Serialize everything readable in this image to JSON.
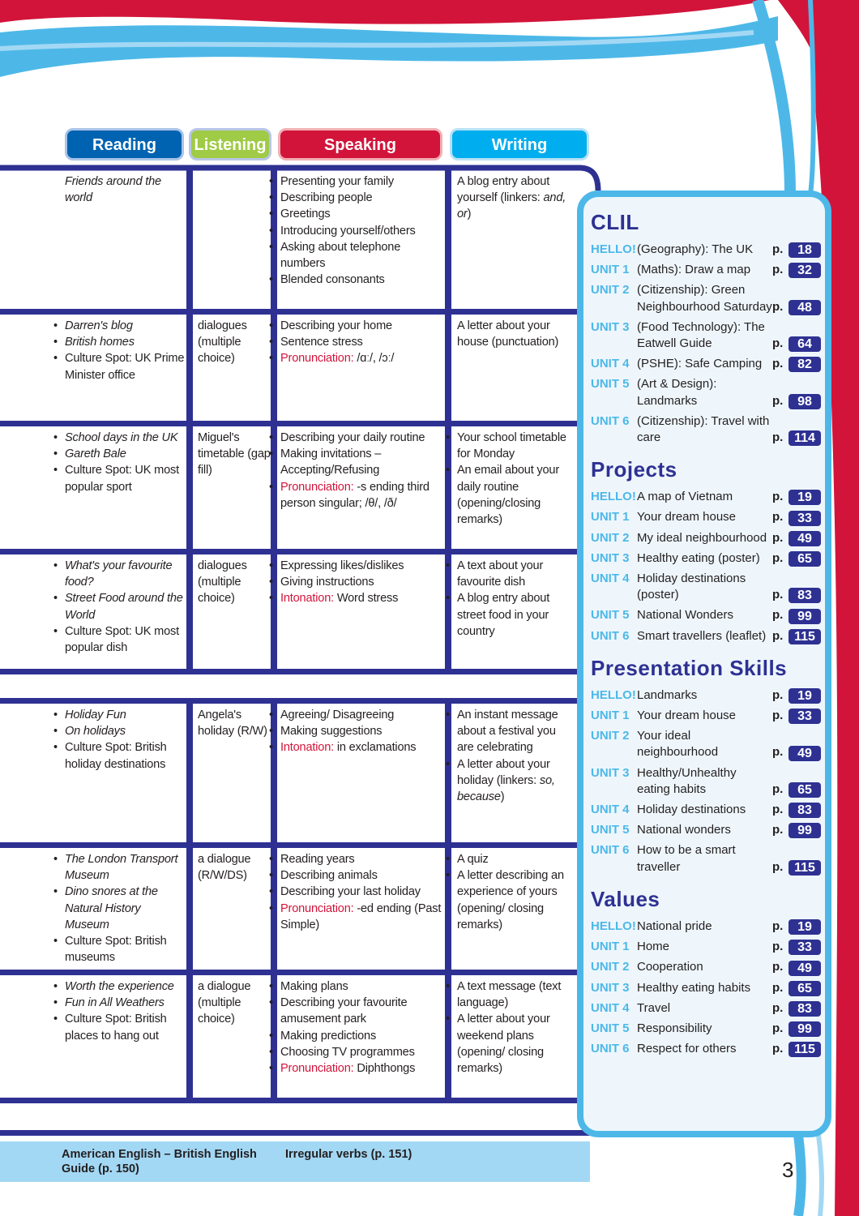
{
  "tabs": [
    {
      "label": "Reading",
      "color": "#0063b1",
      "border": "#a9c4e8"
    },
    {
      "label": "Listening",
      "color": "#9fcb46",
      "border": "#b8c6e6"
    },
    {
      "label": "Speaking",
      "color": "#d2143a",
      "border": "#f0b0b4"
    },
    {
      "label": "Writing",
      "color": "#00aeef",
      "border": "#b8e2f6"
    }
  ],
  "colors": {
    "navy": "#2e3192",
    "red": "#d2143a",
    "light_blue": "#4db8e8"
  },
  "rows": [
    {
      "reading": {
        "bul": false,
        "items": [
          [
            {
              "t": "Friends around the world",
              "s": "i"
            }
          ]
        ]
      },
      "listening": {
        "bul": false,
        "items": []
      },
      "speaking": {
        "bul": true,
        "items": [
          [
            {
              "t": "Presenting your family"
            }
          ],
          [
            {
              "t": "Describing people"
            }
          ],
          [
            {
              "t": "Greetings"
            }
          ],
          [
            {
              "t": "Introducing yourself/others"
            }
          ],
          [
            {
              "t": "Asking about telephone numbers"
            }
          ],
          [
            {
              "t": "Blended consonants"
            }
          ]
        ]
      },
      "writing": {
        "bul": false,
        "items": [
          [
            {
              "t": "A blog entry about yourself (linkers: "
            },
            {
              "t": "and, or",
              "s": "i"
            },
            {
              "t": ")"
            }
          ]
        ]
      }
    },
    {
      "reading": {
        "bul": true,
        "items": [
          [
            {
              "t": "Darren's blog",
              "s": "i"
            }
          ],
          [
            {
              "t": "British homes",
              "s": "i"
            }
          ],
          [
            {
              "t": "Culture Spot: UK Prime Minister office"
            }
          ]
        ]
      },
      "listening": {
        "bul": false,
        "items": [
          [
            {
              "t": "dialogues (multiple choice)"
            }
          ]
        ]
      },
      "speaking": {
        "bul": true,
        "items": [
          [
            {
              "t": "Describing your home"
            }
          ],
          [
            {
              "t": "Sentence stress"
            }
          ],
          [
            {
              "t": "Pronunciation:",
              "s": "r"
            },
            {
              "t": " /ɑː/, /ɔː/"
            }
          ]
        ]
      },
      "writing": {
        "bul": false,
        "items": [
          [
            {
              "t": "A letter about your house (punctuation)"
            }
          ]
        ]
      }
    },
    {
      "reading": {
        "bul": true,
        "items": [
          [
            {
              "t": "School days in the UK",
              "s": "i"
            }
          ],
          [
            {
              "t": "Gareth Bale",
              "s": "i"
            }
          ],
          [
            {
              "t": "Culture Spot: UK most popular sport"
            }
          ]
        ]
      },
      "listening": {
        "bul": false,
        "items": [
          [
            {
              "t": "Miguel's timetable (gap fill)"
            }
          ]
        ]
      },
      "speaking": {
        "bul": true,
        "items": [
          [
            {
              "t": "Describing your daily routine"
            }
          ],
          [
            {
              "t": "Making invitations – Accepting/Refusing"
            }
          ],
          [
            {
              "t": "Pronunciation:",
              "s": "r"
            },
            {
              "t": " -s ending third person singular; /θ/, /ð/"
            }
          ]
        ]
      },
      "writing": {
        "bul": true,
        "items": [
          [
            {
              "t": "Your school timetable for Monday"
            }
          ],
          [
            {
              "t": "An email about your daily routine (opening/closing remarks)"
            }
          ]
        ]
      }
    },
    {
      "reading": {
        "bul": true,
        "items": [
          [
            {
              "t": "What's your favourite food?",
              "s": "i"
            }
          ],
          [
            {
              "t": "Street Food around the World",
              "s": "i"
            }
          ],
          [
            {
              "t": "Culture Spot: UK most popular dish"
            }
          ]
        ]
      },
      "listening": {
        "bul": false,
        "items": [
          [
            {
              "t": "dialogues (multiple choice)"
            }
          ]
        ]
      },
      "speaking": {
        "bul": true,
        "items": [
          [
            {
              "t": "Expressing likes/dislikes"
            }
          ],
          [
            {
              "t": "Giving instructions"
            }
          ],
          [
            {
              "t": "Intonation:",
              "s": "r"
            },
            {
              "t": " Word stress"
            }
          ]
        ]
      },
      "writing": {
        "bul": true,
        "items": [
          [
            {
              "t": "A text about your favourite dish"
            }
          ],
          [
            {
              "t": "A blog entry about street food in your country"
            }
          ]
        ]
      }
    },
    {
      "reading": {
        "bul": true,
        "items": [
          [
            {
              "t": "Holiday Fun",
              "s": "i"
            }
          ],
          [
            {
              "t": "On holidays",
              "s": "i"
            }
          ],
          [
            {
              "t": "Culture Spot: British holiday destinations"
            }
          ]
        ]
      },
      "listening": {
        "bul": false,
        "items": [
          [
            {
              "t": "Angela's holiday (R/W)"
            }
          ]
        ]
      },
      "speaking": {
        "bul": true,
        "items": [
          [
            {
              "t": "Agreeing/ Disagreeing"
            }
          ],
          [
            {
              "t": "Making suggestions"
            }
          ],
          [
            {
              "t": "Intonation:",
              "s": "r"
            },
            {
              "t": " in exclamations"
            }
          ]
        ]
      },
      "writing": {
        "bul": true,
        "items": [
          [
            {
              "t": "An instant message about a festival you are celebrating"
            }
          ],
          [
            {
              "t": "A letter about your holiday (linkers: "
            },
            {
              "t": "so, because",
              "s": "i"
            },
            {
              "t": ")"
            }
          ]
        ]
      }
    },
    {
      "reading": {
        "bul": true,
        "items": [
          [
            {
              "t": "The London Transport Museum",
              "s": "i"
            }
          ],
          [
            {
              "t": "Dino snores at the Natural History Museum",
              "s": "i"
            }
          ],
          [
            {
              "t": "Culture Spot: British museums"
            }
          ]
        ]
      },
      "listening": {
        "bul": false,
        "items": [
          [
            {
              "t": "a dialogue (R/W/DS)"
            }
          ]
        ]
      },
      "speaking": {
        "bul": true,
        "items": [
          [
            {
              "t": "Reading years"
            }
          ],
          [
            {
              "t": "Describing animals"
            }
          ],
          [
            {
              "t": "Describing your last holiday"
            }
          ],
          [
            {
              "t": "Pronunciation:",
              "s": "r"
            },
            {
              "t": " -ed ending (Past Simple)"
            }
          ]
        ]
      },
      "writing": {
        "bul": true,
        "items": [
          [
            {
              "t": "A quiz"
            }
          ],
          [
            {
              "t": "A letter describing an experience of yours (opening/ closing remarks)"
            }
          ]
        ]
      }
    },
    {
      "reading": {
        "bul": true,
        "items": [
          [
            {
              "t": "Worth the experience",
              "s": "i"
            }
          ],
          [
            {
              "t": "Fun in All Weathers",
              "s": "i"
            }
          ],
          [
            {
              "t": "Culture Spot: British places to hang out"
            }
          ]
        ]
      },
      "listening": {
        "bul": false,
        "items": [
          [
            {
              "t": "a dialogue (multiple choice)"
            }
          ]
        ]
      },
      "speaking": {
        "bul": true,
        "items": [
          [
            {
              "t": "Making plans"
            }
          ],
          [
            {
              "t": "Describing your favourite amusement park"
            }
          ],
          [
            {
              "t": "Making predictions"
            }
          ],
          [
            {
              "t": "Choosing TV programmes"
            }
          ],
          [
            {
              "t": "Pronunciation:",
              "s": "r"
            },
            {
              "t": " Diphthongs"
            }
          ]
        ]
      },
      "writing": {
        "bul": true,
        "items": [
          [
            {
              "t": "A text message (text language)"
            }
          ],
          [
            {
              "t": "A letter about your weekend plans (opening/ closing remarks)"
            }
          ]
        ]
      }
    }
  ],
  "sidebar": [
    {
      "title": "CLIL",
      "entries": [
        {
          "unit": "HELLO!",
          "text": "(Geography): The UK",
          "page": "18"
        },
        {
          "unit": "UNIT 1",
          "text": "(Maths): Draw a map",
          "page": "32"
        },
        {
          "unit": "UNIT 2",
          "text": "(Citizenship): Green Neighbourhood Saturday",
          "page": "48"
        },
        {
          "unit": "UNIT 3",
          "text": "(Food Technology): The Eatwell Guide",
          "page": "64"
        },
        {
          "unit": "UNIT 4",
          "text": "(PSHE): Safe Camping",
          "page": "82"
        },
        {
          "unit": "UNIT 5",
          "text": "(Art & Design): Landmarks",
          "page": "98"
        },
        {
          "unit": "UNIT 6",
          "text": "(Citizenship): Travel with care",
          "page": "114"
        }
      ]
    },
    {
      "title": "Projects",
      "entries": [
        {
          "unit": "HELLO!",
          "text": "A map of Vietnam",
          "page": "19"
        },
        {
          "unit": "UNIT 1",
          "text": "Your dream house",
          "page": "33"
        },
        {
          "unit": "UNIT 2",
          "text": "My ideal neighbourhood",
          "page": "49"
        },
        {
          "unit": "UNIT 3",
          "text": "Healthy eating (poster)",
          "page": "65"
        },
        {
          "unit": "UNIT 4",
          "text": "Holiday destinations (poster)",
          "page": "83"
        },
        {
          "unit": "UNIT 5",
          "text": "National Wonders",
          "page": "99"
        },
        {
          "unit": "UNIT 6",
          "text": "Smart travellers (leaflet)",
          "page": "115"
        }
      ]
    },
    {
      "title": "Presentation Skills",
      "entries": [
        {
          "unit": "HELLO!",
          "text": "Landmarks",
          "page": "19"
        },
        {
          "unit": "UNIT 1",
          "text": "Your dream house",
          "page": "33"
        },
        {
          "unit": "UNIT 2",
          "text": "Your ideal neighbourhood",
          "page": "49"
        },
        {
          "unit": "UNIT 3",
          "text": "Healthy/Unhealthy eating habits",
          "page": "65"
        },
        {
          "unit": "UNIT 4",
          "text": "Holiday destinations",
          "page": "83"
        },
        {
          "unit": "UNIT 5",
          "text": "National wonders",
          "page": "99"
        },
        {
          "unit": "UNIT 6",
          "text": "How to be a smart traveller",
          "page": "115"
        }
      ]
    },
    {
      "title": "Values",
      "entries": [
        {
          "unit": "HELLO!",
          "text": "National pride",
          "page": "19"
        },
        {
          "unit": "UNIT 1",
          "text": "Home",
          "page": "33"
        },
        {
          "unit": "UNIT 2",
          "text": "Cooperation",
          "page": "49"
        },
        {
          "unit": "UNIT 3",
          "text": "Healthy eating habits",
          "page": "65"
        },
        {
          "unit": "UNIT 4",
          "text": "Travel",
          "page": "83"
        },
        {
          "unit": "UNIT 5",
          "text": "Responsibility",
          "page": "99"
        },
        {
          "unit": "UNIT 6",
          "text": "Respect for others",
          "page": "115"
        }
      ]
    }
  ],
  "page_prefix": "p.",
  "footer": {
    "left": "American English – British English Guide (p. 150)",
    "right": "Irregular verbs (p. 151)"
  },
  "page_number": "3"
}
